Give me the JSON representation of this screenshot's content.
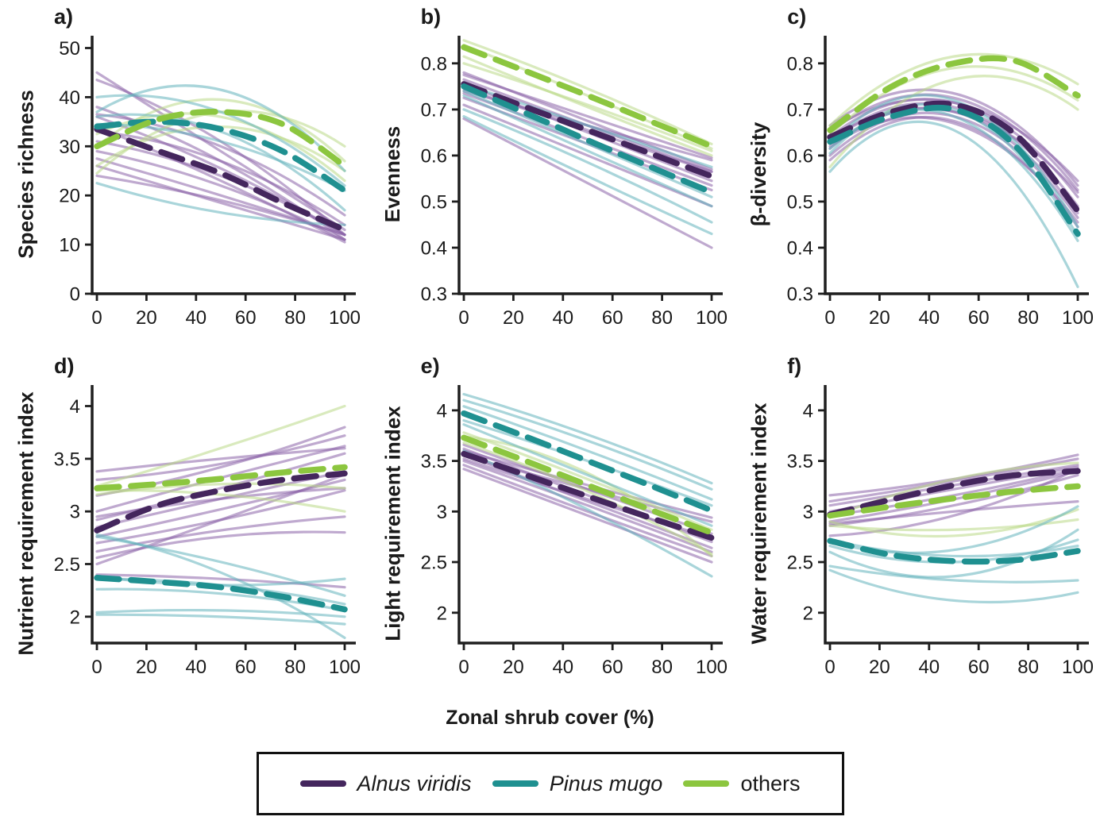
{
  "figure": {
    "xlabel": "Zonal shrub cover (%)",
    "x_range": [
      0,
      100
    ],
    "x_ticks": [
      0,
      20,
      40,
      60,
      80,
      100
    ]
  },
  "colors": {
    "alnus": "#44265d",
    "pinus": "#1f9090",
    "others": "#8cc63f",
    "alnus_thin": "#8a63a8",
    "pinus_thin": "#63b2bc",
    "others_thin": "#b9d887",
    "axis": "#1f1f1f"
  },
  "legend": {
    "items": [
      {
        "label": "Alnus viridis",
        "italic": true,
        "color": "#44265d",
        "group": "alnus"
      },
      {
        "label": "Pinus mugo",
        "italic": true,
        "color": "#1f9090",
        "group": "pinus"
      },
      {
        "label": "others",
        "italic": false,
        "color": "#8cc63f",
        "group": "others"
      }
    ]
  },
  "chart_data": [
    {
      "id": "a",
      "label": "a)",
      "type": "line",
      "ylabel": "Species richness",
      "ylim": [
        0,
        52.5
      ],
      "yticks": [
        0,
        10,
        20,
        30,
        40,
        50
      ],
      "xlim": [
        0,
        100
      ],
      "xticks": [
        0,
        20,
        40,
        60,
        80,
        100
      ],
      "mean_x": [
        0,
        25,
        50,
        75,
        100
      ],
      "series": [
        {
          "name": "Alnus viridis",
          "group": "alnus",
          "values": [
            33.5,
            29,
            24.5,
            18.5,
            13
          ]
        },
        {
          "name": "Pinus mugo",
          "group": "pinus",
          "values": [
            34,
            35,
            33.5,
            29,
            21
          ]
        },
        {
          "name": "others",
          "group": "others",
          "values": [
            30,
            35.5,
            37,
            34.5,
            26
          ]
        }
      ],
      "individual_fits_x": [
        0,
        50,
        100
      ],
      "individual_fits": {
        "alnus": [
          [
            45,
            29,
            13
          ],
          [
            43.5,
            31,
            12
          ],
          [
            38,
            27,
            11
          ],
          [
            36,
            25.5,
            12
          ],
          [
            34,
            23,
            10.5
          ],
          [
            33,
            27,
            14
          ],
          [
            31,
            24,
            12
          ],
          [
            29,
            22,
            11
          ],
          [
            27.5,
            20,
            12
          ],
          [
            26,
            18.5,
            11
          ],
          [
            36.5,
            30,
            16
          ],
          [
            24,
            19,
            12
          ]
        ],
        "pinus": [
          [
            40,
            37,
            22
          ],
          [
            37,
            41.5,
            25
          ],
          [
            34.5,
            31,
            21
          ],
          [
            36,
            33,
            17
          ],
          [
            22.5,
            16.5,
            14
          ]
        ],
        "others": [
          [
            24.5,
            37,
            30
          ],
          [
            30,
            39.5,
            27
          ],
          [
            32.5,
            36,
            23
          ],
          [
            26,
            34,
            25
          ]
        ]
      }
    },
    {
      "id": "b",
      "label": "b)",
      "type": "line",
      "ylabel": "Evenness",
      "ylim": [
        0.3,
        0.86
      ],
      "yticks": [
        0.3,
        0.4,
        0.5,
        0.6,
        0.7,
        0.8
      ],
      "xlim": [
        0,
        100
      ],
      "xticks": [
        0,
        20,
        40,
        60,
        80,
        100
      ],
      "mean_x": [
        0,
        25,
        50,
        75,
        100
      ],
      "series": [
        {
          "name": "Alnus viridis",
          "group": "alnus",
          "values": [
            0.755,
            0.705,
            0.655,
            0.605,
            0.555
          ]
        },
        {
          "name": "Pinus mugo",
          "group": "pinus",
          "values": [
            0.75,
            0.692,
            0.633,
            0.576,
            0.52
          ]
        },
        {
          "name": "others",
          "group": "others",
          "values": [
            0.835,
            0.783,
            0.73,
            0.675,
            0.62
          ]
        }
      ],
      "individual_fits_x": [
        0,
        50,
        100
      ],
      "individual_fits": {
        "alnus": [
          [
            0.78,
            0.675,
            0.57
          ],
          [
            0.765,
            0.665,
            0.565
          ],
          [
            0.755,
            0.65,
            0.545
          ],
          [
            0.745,
            0.655,
            0.565
          ],
          [
            0.735,
            0.635,
            0.535
          ],
          [
            0.725,
            0.625,
            0.525
          ],
          [
            0.71,
            0.6,
            0.49
          ],
          [
            0.68,
            0.54,
            0.4
          ],
          [
            0.775,
            0.685,
            0.595
          ],
          [
            0.74,
            0.665,
            0.59
          ]
        ],
        "pinus": [
          [
            0.755,
            0.665,
            0.575
          ],
          [
            0.74,
            0.625,
            0.51
          ],
          [
            0.7,
            0.585,
            0.455
          ],
          [
            0.685,
            0.555,
            0.43
          ],
          [
            0.73,
            0.61,
            0.49
          ]
        ],
        "others": [
          [
            0.85,
            0.745,
            0.625
          ],
          [
            0.84,
            0.73,
            0.615
          ],
          [
            0.815,
            0.705,
            0.6
          ],
          [
            0.8,
            0.71,
            0.61
          ]
        ]
      }
    },
    {
      "id": "c",
      "label": "c)",
      "type": "line",
      "ylabel": "β-diversity",
      "ylim": [
        0.3,
        0.86
      ],
      "yticks": [
        0.3,
        0.4,
        0.5,
        0.6,
        0.7,
        0.8
      ],
      "xlim": [
        0,
        100
      ],
      "xticks": [
        0,
        20,
        40,
        60,
        80,
        100
      ],
      "mean_x": [
        0,
        25,
        50,
        75,
        100
      ],
      "series": [
        {
          "name": "Alnus viridis",
          "group": "alnus",
          "values": [
            0.64,
            0.695,
            0.71,
            0.645,
            0.48
          ]
        },
        {
          "name": "Pinus mugo",
          "group": "pinus",
          "values": [
            0.63,
            0.685,
            0.7,
            0.62,
            0.43
          ]
        },
        {
          "name": "others",
          "group": "others",
          "values": [
            0.655,
            0.75,
            0.8,
            0.805,
            0.73
          ]
        }
      ],
      "individual_fits_x": [
        0,
        50,
        100
      ],
      "individual_fits": {
        "alnus": [
          [
            0.665,
            0.735,
            0.535
          ],
          [
            0.65,
            0.725,
            0.525
          ],
          [
            0.64,
            0.715,
            0.51
          ],
          [
            0.63,
            0.705,
            0.49
          ],
          [
            0.615,
            0.695,
            0.475
          ],
          [
            0.6,
            0.685,
            0.465
          ],
          [
            0.655,
            0.715,
            0.545
          ],
          [
            0.62,
            0.67,
            0.455
          ],
          [
            0.59,
            0.675,
            0.445
          ],
          [
            0.635,
            0.695,
            0.52
          ]
        ],
        "pinus": [
          [
            0.625,
            0.72,
            0.445
          ],
          [
            0.605,
            0.7,
            0.425
          ],
          [
            0.565,
            0.655,
            0.315
          ],
          [
            0.615,
            0.685,
            0.415
          ]
        ],
        "others": [
          [
            0.665,
            0.815,
            0.755
          ],
          [
            0.645,
            0.79,
            0.72
          ],
          [
            0.575,
            0.765,
            0.7
          ]
        ]
      }
    },
    {
      "id": "d",
      "label": "d)",
      "type": "line",
      "ylabel": "Nutrient requirement index",
      "ylim": [
        1.75,
        4.2
      ],
      "yticks": [
        2,
        2.5,
        3,
        3.5,
        4
      ],
      "xlim": [
        0,
        100
      ],
      "xticks": [
        0,
        20,
        40,
        60,
        80,
        100
      ],
      "mean_x": [
        0,
        25,
        50,
        75,
        100
      ],
      "series": [
        {
          "name": "Alnus viridis",
          "group": "alnus",
          "values": [
            2.82,
            3.06,
            3.2,
            3.3,
            3.36
          ]
        },
        {
          "name": "Pinus mugo",
          "group": "pinus",
          "values": [
            2.37,
            2.33,
            2.28,
            2.19,
            2.07
          ]
        },
        {
          "name": "others",
          "group": "others",
          "values": [
            3.22,
            3.26,
            3.31,
            3.37,
            3.42
          ]
        }
      ],
      "individual_fits_x": [
        0,
        50,
        100
      ],
      "individual_fits": {
        "alnus": [
          [
            3.38,
            3.5,
            3.6
          ],
          [
            3.3,
            3.45,
            3.72
          ],
          [
            3.15,
            3.42,
            3.8
          ],
          [
            3.0,
            3.32,
            3.62
          ],
          [
            2.92,
            3.22,
            3.55
          ],
          [
            2.85,
            3.12,
            3.38
          ],
          [
            2.76,
            3.02,
            3.3
          ],
          [
            2.7,
            2.92,
            3.2
          ],
          [
            2.62,
            2.82,
            2.95
          ],
          [
            2.56,
            2.76,
            2.8
          ],
          [
            2.5,
            2.92,
            3.35
          ],
          [
            2.95,
            3.12,
            3.22
          ],
          [
            2.4,
            2.36,
            2.28
          ]
        ],
        "pinus": [
          [
            2.78,
            2.42,
            1.8
          ],
          [
            2.76,
            2.52,
            2.2
          ],
          [
            2.36,
            2.3,
            2.12
          ],
          [
            2.26,
            2.22,
            2.06
          ],
          [
            2.04,
            2.06,
            2.0
          ],
          [
            2.02,
            2.0,
            1.93
          ],
          [
            2.38,
            2.3,
            2.36
          ]
        ],
        "others": [
          [
            3.24,
            3.6,
            4.0
          ],
          [
            3.2,
            3.16,
            3.0
          ],
          [
            3.16,
            3.26,
            3.22
          ]
        ]
      }
    },
    {
      "id": "e",
      "label": "e)",
      "type": "line",
      "ylabel": "Light requirement index",
      "ylim": [
        1.7,
        4.25
      ],
      "yticks": [
        2,
        2.5,
        3,
        3.5,
        4
      ],
      "xlim": [
        0,
        100
      ],
      "xticks": [
        0,
        20,
        40,
        60,
        80,
        100
      ],
      "mean_x": [
        0,
        25,
        50,
        75,
        100
      ],
      "series": [
        {
          "name": "Alnus viridis",
          "group": "alnus",
          "values": [
            3.57,
            3.36,
            3.15,
            2.94,
            2.74
          ]
        },
        {
          "name": "Pinus mugo",
          "group": "pinus",
          "values": [
            3.97,
            3.74,
            3.5,
            3.26,
            3.01
          ]
        },
        {
          "name": "others",
          "group": "others",
          "values": [
            3.73,
            3.5,
            3.26,
            3.02,
            2.79
          ]
        }
      ],
      "individual_fits_x": [
        0,
        50,
        100
      ],
      "individual_fits": {
        "alnus": [
          [
            3.66,
            3.22,
            2.78
          ],
          [
            3.62,
            3.16,
            2.7
          ],
          [
            3.56,
            3.1,
            2.64
          ],
          [
            3.5,
            3.06,
            2.6
          ],
          [
            3.46,
            3.0,
            2.56
          ],
          [
            3.42,
            2.96,
            2.5
          ],
          [
            3.55,
            3.22,
            2.9
          ],
          [
            3.52,
            3.12,
            2.74
          ],
          [
            3.6,
            3.26,
            2.94
          ]
        ],
        "pinus": [
          [
            4.16,
            3.76,
            3.28
          ],
          [
            4.1,
            3.7,
            3.22
          ],
          [
            4.04,
            3.6,
            3.12
          ],
          [
            3.9,
            3.5,
            3.06
          ],
          [
            3.86,
            3.36,
            2.86
          ],
          [
            3.6,
            3.02,
            2.36
          ]
        ],
        "others": [
          [
            3.78,
            3.32,
            2.82
          ],
          [
            3.68,
            3.2,
            2.58
          ],
          [
            3.74,
            3.38,
            2.56
          ]
        ]
      }
    },
    {
      "id": "f",
      "label": "f)",
      "type": "line",
      "ylabel": "Water requirement index",
      "ylim": [
        1.7,
        4.25
      ],
      "yticks": [
        2,
        2.5,
        3,
        3.5,
        4
      ],
      "xlim": [
        0,
        100
      ],
      "xticks": [
        0,
        20,
        40,
        60,
        80,
        100
      ],
      "mean_x": [
        0,
        25,
        50,
        75,
        100
      ],
      "series": [
        {
          "name": "Alnus viridis",
          "group": "alnus",
          "values": [
            2.97,
            3.12,
            3.26,
            3.36,
            3.4
          ]
        },
        {
          "name": "Pinus mugo",
          "group": "pinus",
          "values": [
            2.71,
            2.57,
            2.51,
            2.52,
            2.61
          ]
        },
        {
          "name": "others",
          "group": "others",
          "values": [
            2.96,
            3.05,
            3.13,
            3.2,
            3.25
          ]
        }
      ],
      "individual_fits_x": [
        0,
        50,
        100
      ],
      "individual_fits": {
        "alnus": [
          [
            3.16,
            3.32,
            3.56
          ],
          [
            3.1,
            3.3,
            3.52
          ],
          [
            3.06,
            3.26,
            3.46
          ],
          [
            3.0,
            3.22,
            3.44
          ],
          [
            2.96,
            3.16,
            3.42
          ],
          [
            2.9,
            3.12,
            3.4
          ],
          [
            2.86,
            3.06,
            3.36
          ],
          [
            2.88,
            3.0,
            3.1
          ],
          [
            2.76,
            2.96,
            3.42
          ]
        ],
        "pinus": [
          [
            2.72,
            2.56,
            2.66
          ],
          [
            2.66,
            2.5,
            2.72
          ],
          [
            2.6,
            2.36,
            2.82
          ],
          [
            2.46,
            2.32,
            2.32
          ],
          [
            2.42,
            2.12,
            2.2
          ],
          [
            2.7,
            2.62,
            3.05
          ]
        ],
        "others": [
          [
            2.94,
            3.32,
            3.48
          ],
          [
            2.9,
            2.76,
            3.02
          ],
          [
            2.86,
            2.82,
            2.92
          ]
        ]
      }
    }
  ]
}
